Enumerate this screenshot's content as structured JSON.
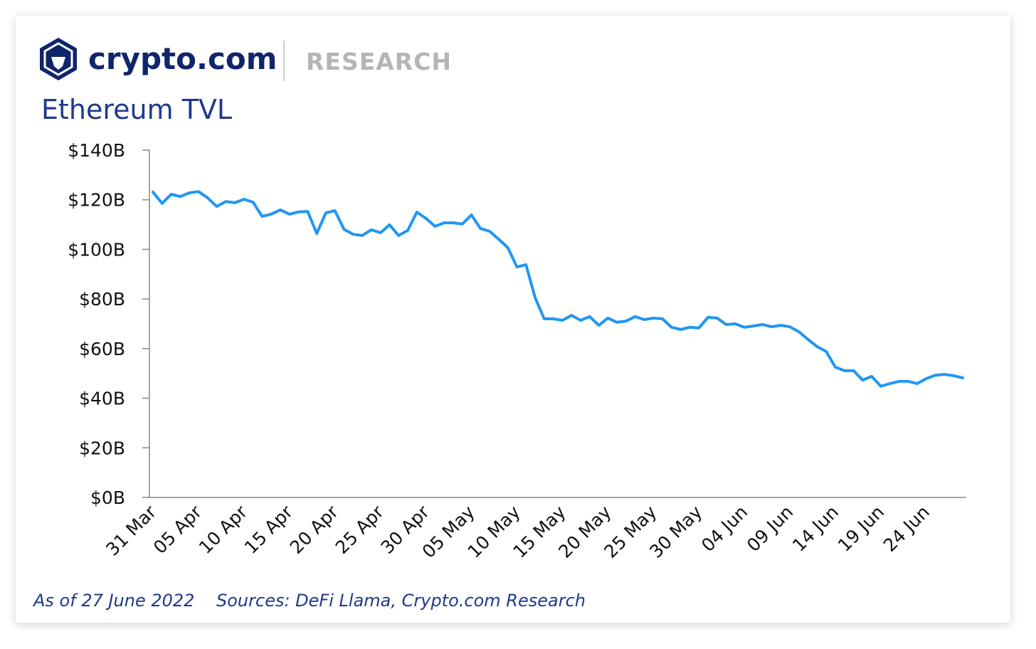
{
  "brand": "crypto.com",
  "section": "RESEARCH",
  "chart_data": {
    "type": "line",
    "title": "Ethereum TVL",
    "categories": [
      "31 Mar",
      null,
      null,
      null,
      null,
      "05 Apr",
      null,
      null,
      null,
      null,
      "10 Apr",
      null,
      null,
      null,
      null,
      "15 Apr",
      null,
      null,
      null,
      null,
      "20 Apr",
      null,
      null,
      null,
      null,
      "25 Apr",
      null,
      null,
      null,
      null,
      "30 Apr",
      null,
      null,
      null,
      null,
      "05 May",
      null,
      null,
      null,
      null,
      "10 May",
      null,
      null,
      null,
      null,
      "15 May",
      null,
      null,
      null,
      null,
      "20 May",
      null,
      null,
      null,
      null,
      "25 May",
      null,
      null,
      null,
      null,
      "30 May",
      null,
      null,
      null,
      null,
      "04 Jun",
      null,
      null,
      null,
      null,
      "09 Jun",
      null,
      null,
      null,
      null,
      "14 Jun",
      null,
      null,
      null,
      null,
      "19 Jun",
      null,
      null,
      null,
      null,
      "24 Jun",
      null,
      null,
      null,
      null
    ],
    "series": [
      {
        "name": "Ethereum TVL",
        "color": "#2196f3",
        "values": [
          123.1,
          118.5,
          122.2,
          121.3,
          122.8,
          123.3,
          120.8,
          117.3,
          119.3,
          118.8,
          120.2,
          119.0,
          113.3,
          114.2,
          115.9,
          114.2,
          115.1,
          115.3,
          106.4,
          114.7,
          115.6,
          108.1,
          106.1,
          105.6,
          107.9,
          106.7,
          109.9,
          105.6,
          107.6,
          115.0,
          112.5,
          109.3,
          110.7,
          110.7,
          110.2,
          113.9,
          108.4,
          107.3,
          104.1,
          100.7,
          92.9,
          93.8,
          80.6,
          72.0,
          72.0,
          71.4,
          73.4,
          71.4,
          72.9,
          69.4,
          72.3,
          70.6,
          71.1,
          72.9,
          71.7,
          72.3,
          72.0,
          68.6,
          67.7,
          68.6,
          68.3,
          72.6,
          72.3,
          69.7,
          70.0,
          68.6,
          69.1,
          69.7,
          68.8,
          69.4,
          68.8,
          66.8,
          63.7,
          60.8,
          58.8,
          52.5,
          51.1,
          51.1,
          47.3,
          48.8,
          44.8,
          45.9,
          46.8,
          46.8,
          45.9,
          47.9,
          49.3,
          49.6,
          49.1,
          48.2
        ]
      }
    ],
    "ylim": [
      0,
      140
    ],
    "yticks": [
      {
        "value": 0,
        "label": "$0B"
      },
      {
        "value": 20,
        "label": "$20B"
      },
      {
        "value": 40,
        "label": "$40B"
      },
      {
        "value": 60,
        "label": "$60B"
      },
      {
        "value": 80,
        "label": "$80B"
      },
      {
        "value": 100,
        "label": "$100B"
      },
      {
        "value": 120,
        "label": "$120B"
      },
      {
        "value": 140,
        "label": "$140B"
      }
    ],
    "grid": false,
    "notes": [
      "As of 27 June 2022",
      "Sources: DeFi Llama, Crypto.com Research"
    ]
  }
}
